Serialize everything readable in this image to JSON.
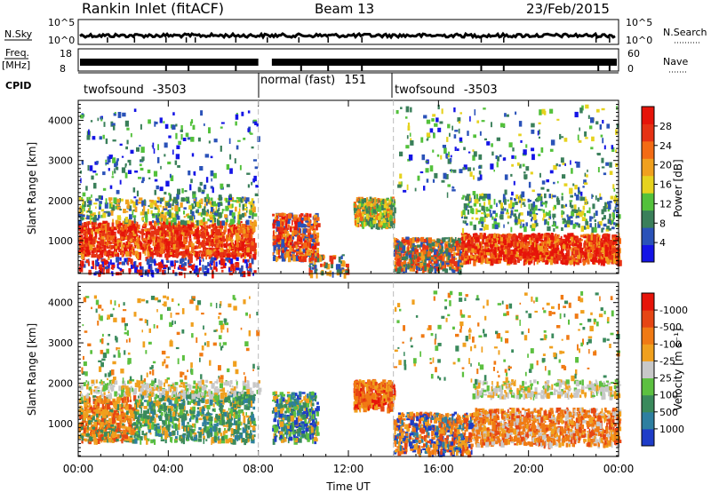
{
  "header": {
    "station": "Rankin Inlet (fitACF)",
    "beam": "Beam 13",
    "date": "23/Feb/2015"
  },
  "aux_panels": {
    "nsky_label": "N.Sky",
    "nsky_ticks": [
      "10^5",
      "10^0"
    ],
    "nsearch_label": "N.Search",
    "nsearch_ticks": [
      "10^5",
      "10^0"
    ],
    "freq_label": "Freq.",
    "freq_unit": "[MHz]",
    "freq_ticks": [
      "18",
      "8"
    ],
    "nave_label": "Nave",
    "nave_ticks": [
      "60",
      "0"
    ],
    "cpid_label": "CPID",
    "cpid_segments": [
      {
        "name": "twofsound",
        "id": "-3503",
        "start_h": 0,
        "end_h": 8
      },
      {
        "name": "normal (fast)",
        "id": "151",
        "start_h": 8,
        "end_h": 14
      },
      {
        "name": "twofsound",
        "id": "-3503",
        "start_h": 14,
        "end_h": 24
      }
    ]
  },
  "colorbars": {
    "power": {
      "title": "Power [dB]",
      "ticks": [
        "4",
        "8",
        "12",
        "16",
        "20",
        "24",
        "28"
      ],
      "colors": [
        "#1414e6",
        "#2a52b8",
        "#3a7f5a",
        "#53c13b",
        "#e6d21e",
        "#f0a01e",
        "#f36b14",
        "#e63214",
        "#e6140a"
      ]
    },
    "velocity": {
      "title": "Velocity [m s⁻¹]",
      "ticks": [
        "1000",
        "500",
        "100",
        "25",
        "-25",
        "-100",
        "-500",
        "-1000"
      ],
      "colors": [
        "#1e3cc8",
        "#2e7fa0",
        "#3a8a5c",
        "#5cc040",
        "#c8c8c8",
        "#f0a01e",
        "#f07a14",
        "#e64614",
        "#e6140a"
      ]
    }
  },
  "chart_data": [
    {
      "type": "heatmap",
      "title": "Power",
      "xlabel": "",
      "ylabel": "Slant Range [km]",
      "xlim": [
        0,
        24
      ],
      "ylim": [
        180,
        4500
      ],
      "yticks": [
        1000,
        2000,
        3000,
        4000
      ],
      "colorbar_label": "Power [dB]",
      "colorbar_range": [
        0,
        32
      ],
      "mean_power_db_by_hour": [
        {
          "hour": 1,
          "range_km": 1050,
          "db": 26
        },
        {
          "hour": 3,
          "range_km": 1100,
          "db": 24
        },
        {
          "hour": 5,
          "range_km": 1000,
          "db": 22
        },
        {
          "hour": 9.5,
          "range_km": 1000,
          "db": 20
        },
        {
          "hour": 13,
          "range_km": 1700,
          "db": 14
        },
        {
          "hour": 16,
          "range_km": 800,
          "db": 20
        },
        {
          "hour": 21,
          "range_km": 900,
          "db": 26
        }
      ]
    },
    {
      "type": "heatmap",
      "title": "Velocity",
      "xlabel": "Time UT",
      "ylabel": "Slant Range [km]",
      "xlim": [
        0,
        24
      ],
      "ylim": [
        180,
        4500
      ],
      "yticks": [
        1000,
        2000,
        3000,
        4000
      ],
      "xticks": [
        "00:00",
        "04:00",
        "08:00",
        "12:00",
        "16:00",
        "20:00",
        "00:00"
      ],
      "colorbar_label": "Velocity [m s⁻¹]",
      "colorbar_range": [
        -1000,
        1000
      ]
    }
  ]
}
